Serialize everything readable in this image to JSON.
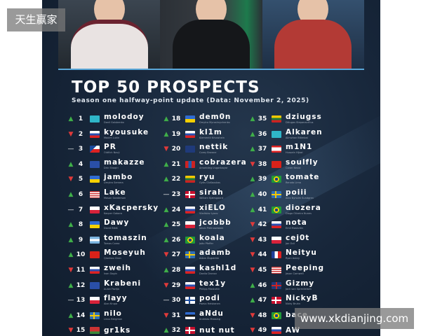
{
  "watermark_top": "天生赢家",
  "watermark_bottom": "www.xkdianjing.com",
  "title": "TOP 50 PROSPECTS",
  "subtitle": "Season one halfway-point update (Data: November 2, 2025)",
  "colors": {
    "up": "#3fae49",
    "down": "#e03a3a",
    "accent": "#5aa7d8"
  },
  "columns": [
    [
      {
        "rank": "1",
        "trend": "up",
        "flag": "kz",
        "nick": "molodoy",
        "name": "Danil Golubenko"
      },
      {
        "rank": "2",
        "trend": "down",
        "flag": "ru",
        "nick": "kyousuke",
        "name": "Maxim Lukin"
      },
      {
        "rank": "3",
        "trend": "same",
        "flag": "cz",
        "nick": "PR",
        "name": "Oldřich Nový"
      },
      {
        "rank": "4",
        "trend": "up",
        "flag": "xk",
        "nick": "makazze",
        "name": "Drin Shaqiri"
      },
      {
        "rank": "5",
        "trend": "down",
        "flag": "ua",
        "nick": "jambo",
        "name": "Dmytro Semera"
      },
      {
        "rank": "6",
        "trend": "up",
        "flag": "us",
        "nick": "Lake",
        "name": "Mason Sanderson"
      },
      {
        "rank": "7",
        "trend": "same",
        "flag": "pl",
        "nick": "xKacpersky",
        "name": "Kacper Gabara"
      },
      {
        "rank": "8",
        "trend": "up",
        "flag": "ua",
        "nick": "Dawy",
        "name": "David Bibik"
      },
      {
        "rank": "9",
        "trend": "up",
        "flag": "ar",
        "nick": "tomaszin",
        "name": "Tomas Corea"
      },
      {
        "rank": "10",
        "trend": "up",
        "flag": "cn",
        "nick": "Moseyuh",
        "name": "Qianhao Chen"
      },
      {
        "rank": "11",
        "trend": "down",
        "flag": "ru",
        "nick": "zweih",
        "name": "Ivan Gogin"
      },
      {
        "rank": "12",
        "trend": "up",
        "flag": "xk",
        "nick": "Krabeni",
        "name": "Aulon Fazlija"
      },
      {
        "rank": "13",
        "trend": "same",
        "flag": "pl",
        "nick": "flayy",
        "name": "Alan Krupa"
      },
      {
        "rank": "14",
        "trend": "up",
        "flag": "se",
        "nick": "nilo",
        "name": "Linus Bergman"
      },
      {
        "rank": "15",
        "trend": "down",
        "flag": "by",
        "nick": "gr1ks",
        "name": ""
      }
    ],
    [
      {
        "rank": "18",
        "trend": "up",
        "flag": "ua",
        "nick": "dem0n",
        "name": "Dmytro Myroshnychenko"
      },
      {
        "rank": "19",
        "trend": "up",
        "flag": "ru",
        "nick": "kl1m",
        "name": "Klementii Krivoshein"
      },
      {
        "rank": "20",
        "trend": "down",
        "flag": "nz",
        "nick": "nettik",
        "name": "Corey Browne"
      },
      {
        "rank": "21",
        "trend": "up",
        "flag": "mn",
        "nick": "cobrazera",
        "name": "Amarbileg Uuganbayar"
      },
      {
        "rank": "22",
        "trend": "up",
        "flag": "lt",
        "nick": "ryu",
        "name": "Gytis Glušauskas"
      },
      {
        "rank": "23",
        "trend": "same",
        "flag": "dk",
        "nick": "sirah",
        "name": "William Kjærsgaard"
      },
      {
        "rank": "24",
        "trend": "up",
        "flag": "ru",
        "nick": "xiELO",
        "name": "Vladislav Lysov"
      },
      {
        "rank": "25",
        "trend": "up",
        "flag": "pl",
        "nick": "jcobbb",
        "name": "Jakub Pietruszewski"
      },
      {
        "rank": "26",
        "trend": "up",
        "flag": "br",
        "nick": "koala",
        "name": "João Pfeffer"
      },
      {
        "rank": "27",
        "trend": "down",
        "flag": "se",
        "nick": "adamb",
        "name": "Adam Ångström"
      },
      {
        "rank": "28",
        "trend": "up",
        "flag": "ru",
        "nick": "kashl1d",
        "name": "Danila Dronov"
      },
      {
        "rank": "29",
        "trend": "down",
        "flag": "ru",
        "nick": "tex1y",
        "name": "Philipp Maskuhin"
      },
      {
        "rank": "30",
        "trend": "same",
        "flag": "fi",
        "nick": "podi",
        "name": "Paavo Heiskanen"
      },
      {
        "rank": "31",
        "trend": "down",
        "flag": "ee",
        "nick": "aNdu",
        "name": "Andreas Maasing"
      },
      {
        "rank": "32",
        "trend": "up",
        "flag": "dk",
        "nick": "nut nut",
        "name": ""
      }
    ],
    [
      {
        "rank": "35",
        "trend": "up",
        "flag": "lt",
        "nick": "dziugss",
        "name": "Džiugas Stepanavičius"
      },
      {
        "rank": "36",
        "trend": "up",
        "flag": "kz",
        "nick": "Alkaren",
        "name": "Alimzhan Bitimbai"
      },
      {
        "rank": "37",
        "trend": "up",
        "flag": "lb",
        "nick": "m1N1",
        "name": "Hussein Hijazi"
      },
      {
        "rank": "38",
        "trend": "down",
        "flag": "tr",
        "nick": "soulfly",
        "name": "Caner Kesici"
      },
      {
        "rank": "39",
        "trend": "up",
        "flag": "br",
        "nick": "tomate",
        "name": "Renato Lima"
      },
      {
        "rank": "40",
        "trend": "up",
        "flag": "se",
        "nick": "poiii",
        "name": "Alex Nyholm Sundgren"
      },
      {
        "rank": "41",
        "trend": "up",
        "flag": "br",
        "nick": "diozera",
        "name": "Diogo Oliveira Nunes"
      },
      {
        "rank": "42",
        "trend": "down",
        "flag": "ru",
        "nick": "nota",
        "name": "Emil Moskvitin"
      },
      {
        "rank": "43",
        "trend": "down",
        "flag": "pl",
        "nick": "cej0t",
        "name": "Jan Ocil"
      },
      {
        "rank": "44",
        "trend": "down",
        "flag": "fr",
        "nick": "Neityu",
        "name": "Ryan Aubry"
      },
      {
        "rank": "45",
        "trend": "down",
        "flag": "us",
        "nick": "Peeping",
        "name": "Jason Cornwell"
      },
      {
        "rank": "46",
        "trend": "up",
        "flag": "gb",
        "nick": "Gizmy",
        "name": "Jack von Spreckelsen"
      },
      {
        "rank": "47",
        "trend": "up",
        "flag": "dk",
        "nick": "NickyB",
        "name": "Nicky Bruhn"
      },
      {
        "rank": "48",
        "trend": "down",
        "flag": "br",
        "nick": "bace",
        "name": ""
      },
      {
        "rank": "49",
        "trend": "down",
        "flag": "ru",
        "nick": "AW",
        "name": ""
      }
    ]
  ]
}
